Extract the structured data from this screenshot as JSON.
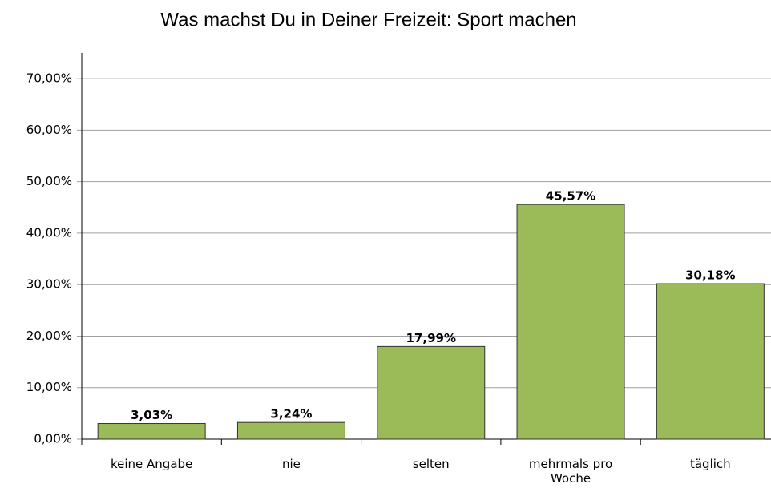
{
  "chart_data": {
    "type": "bar",
    "title": "Was machst Du in Deiner Freizeit: Sport machen",
    "categories": [
      "keine Angabe",
      "nie",
      "selten",
      "mehrmals pro Woche",
      "täglich"
    ],
    "values": [
      3.03,
      3.24,
      17.99,
      45.57,
      30.18
    ],
    "value_labels": [
      "3,03%",
      "3,24%",
      "17,99%",
      "45,57%",
      "30,18%"
    ],
    "color": "#9bbb59",
    "ylim": [
      0,
      75
    ],
    "yticks": [
      {
        "value": 0,
        "label": "0,00%"
      },
      {
        "value": 10,
        "label": "10,00%"
      },
      {
        "value": 20,
        "label": "20,00%"
      },
      {
        "value": 30,
        "label": "30,00%"
      },
      {
        "value": 40,
        "label": "40,00%"
      },
      {
        "value": 50,
        "label": "50,00%"
      },
      {
        "value": 60,
        "label": "60,00%"
      },
      {
        "value": 70,
        "label": "70,00%"
      }
    ],
    "grid": true
  }
}
